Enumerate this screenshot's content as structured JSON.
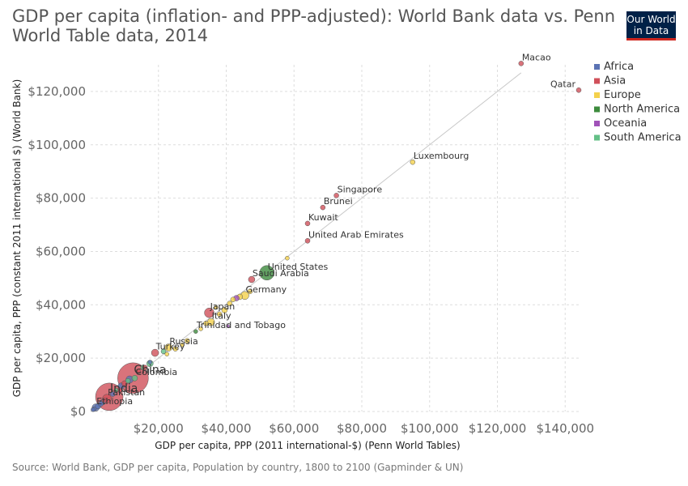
{
  "header": {
    "title": "GDP per capita (inflation- and PPP-adjusted): World Bank data vs. Penn World Table data, 2014",
    "logo_line1": "Our World",
    "logo_line2": "in Data"
  },
  "footer": {
    "source": "Source: World Bank, GDP per capita, Population by country, 1800 to 2100 (Gapminder & UN)"
  },
  "chart_data": {
    "type": "scatter",
    "title": "GDP per capita (inflation- and PPP-adjusted): World Bank data vs. Penn World Table data, 2014",
    "xlabel": "GDP per capita, PPP (2011 international-$) (Penn World Tables)",
    "ylabel": "GDP per capita, PPP (constant 2011 international $) (World Bank)",
    "xlim": [
      0,
      144000
    ],
    "ylim": [
      0,
      130000
    ],
    "x_ticks": [
      20000,
      40000,
      60000,
      80000,
      100000,
      120000,
      140000
    ],
    "x_tick_labels": [
      "$20,000",
      "$40,000",
      "$60,000",
      "$80,000",
      "$100,000",
      "$120,000",
      "$140,000"
    ],
    "y_ticks": [
      0,
      20000,
      40000,
      60000,
      80000,
      100000,
      120000
    ],
    "y_tick_labels": [
      "$0",
      "$20,000",
      "$40,000",
      "$60,000",
      "$80,000",
      "$100,000",
      "$120,000"
    ],
    "grid": true,
    "legend_position": "right",
    "reference_line": [
      [
        0,
        0
      ],
      [
        127000,
        127000
      ]
    ],
    "colors": {
      "Africa": "#5b73b4",
      "Asia": "#d0505a",
      "Europe": "#f4d14c",
      "North America": "#3d8b3d",
      "Oceania": "#a052b8",
      "South America": "#64c087"
    },
    "legend": [
      "Africa",
      "Asia",
      "Europe",
      "North America",
      "Oceania",
      "South America"
    ],
    "points": [
      {
        "name": "Macao",
        "region": "Asia",
        "x": 127000,
        "y": 130500,
        "size": 3,
        "label": "Macao"
      },
      {
        "name": "Qatar",
        "region": "Asia",
        "x": 144000,
        "y": 120500,
        "size": 3,
        "label": "Qatar"
      },
      {
        "name": "Luxembourg",
        "region": "Europe",
        "x": 95000,
        "y": 93500,
        "size": 3,
        "label": "Luxembourg"
      },
      {
        "name": "Singapore",
        "region": "Asia",
        "x": 72500,
        "y": 81000,
        "size": 3,
        "label": "Singapore"
      },
      {
        "name": "Brunei",
        "region": "Asia",
        "x": 68500,
        "y": 76500,
        "size": 3,
        "label": "Brunei"
      },
      {
        "name": "Kuwait",
        "region": "Asia",
        "x": 64000,
        "y": 70500,
        "size": 3,
        "label": "Kuwait"
      },
      {
        "name": "United Arab Emirates",
        "region": "Asia",
        "x": 64000,
        "y": 64000,
        "size": 3,
        "label": "United Arab Emirates"
      },
      {
        "name": "United States",
        "region": "North America",
        "x": 52000,
        "y": 52000,
        "size": 9,
        "label": "United States"
      },
      {
        "name": "Saudi Arabia",
        "region": "Asia",
        "x": 47500,
        "y": 49500,
        "size": 4,
        "label": "Saudi Arabia"
      },
      {
        "name": "Germany",
        "region": "Europe",
        "x": 45500,
        "y": 43500,
        "size": 5,
        "label": "Germany"
      },
      {
        "name": "Japan",
        "region": "Asia",
        "x": 35000,
        "y": 37000,
        "size": 6,
        "label": "Japan"
      },
      {
        "name": "Italy",
        "region": "Europe",
        "x": 35500,
        "y": 33500,
        "size": 4.5,
        "label": "Italy"
      },
      {
        "name": "Trinidad and Tobago",
        "region": "North America",
        "x": 31000,
        "y": 30000,
        "size": 2.5,
        "label": "Trinidad and Tobago"
      },
      {
        "name": "Russia",
        "region": "Europe",
        "x": 23000,
        "y": 24000,
        "size": 4.5,
        "label": "Russia"
      },
      {
        "name": "Turkey",
        "region": "Asia",
        "x": 19000,
        "y": 22000,
        "size": 4.5,
        "label": "Turkey"
      },
      {
        "name": "China",
        "region": "Asia",
        "x": 12500,
        "y": 12500,
        "size": 19,
        "label": "China"
      },
      {
        "name": "Colombia",
        "region": "South America",
        "x": 13000,
        "y": 12500,
        "size": 3.5,
        "label": "Colombia"
      },
      {
        "name": "India",
        "region": "Asia",
        "x": 5500,
        "y": 5500,
        "size": 17,
        "label": "India"
      },
      {
        "name": "Pakistan",
        "region": "Asia",
        "x": 4800,
        "y": 4800,
        "size": 5.5,
        "label": "Pakistan"
      },
      {
        "name": "Ethiopia",
        "region": "Africa",
        "x": 1500,
        "y": 1500,
        "size": 4.5,
        "label": "Ethiopia"
      },
      {
        "region": "Europe",
        "x": 58000,
        "y": 57500,
        "size": 2.5
      },
      {
        "region": "Europe",
        "x": 47000,
        "y": 45000,
        "size": 3
      },
      {
        "region": "Europe",
        "x": 44000,
        "y": 43000,
        "size": 3.5
      },
      {
        "region": "Europe",
        "x": 42000,
        "y": 42000,
        "size": 3
      },
      {
        "region": "Oceania",
        "x": 43000,
        "y": 42500,
        "size": 3.5
      },
      {
        "region": "Europe",
        "x": 41000,
        "y": 40500,
        "size": 3
      },
      {
        "region": "Europe",
        "x": 39500,
        "y": 38000,
        "size": 3.5
      },
      {
        "region": "Europe",
        "x": 38000,
        "y": 36500,
        "size": 3
      },
      {
        "region": "Europe",
        "x": 37000,
        "y": 39000,
        "size": 2.5
      },
      {
        "region": "Europe",
        "x": 34000,
        "y": 33000,
        "size": 3
      },
      {
        "region": "Europe",
        "x": 32500,
        "y": 31000,
        "size": 2.5
      },
      {
        "region": "Europe",
        "x": 28500,
        "y": 26500,
        "size": 3
      },
      {
        "region": "Europe",
        "x": 27000,
        "y": 25000,
        "size": 2.5
      },
      {
        "region": "Europe",
        "x": 25000,
        "y": 23500,
        "size": 3
      },
      {
        "region": "Europe",
        "x": 22500,
        "y": 21500,
        "size": 2.5
      },
      {
        "region": "Oceania",
        "x": 40500,
        "y": 32000,
        "size": 2
      },
      {
        "region": "South America",
        "x": 21500,
        "y": 22500,
        "size": 3
      },
      {
        "region": "South America",
        "x": 17500,
        "y": 18000,
        "size": 4
      },
      {
        "region": "South America",
        "x": 15500,
        "y": 16500,
        "size": 3
      },
      {
        "region": "Africa",
        "x": 17500,
        "y": 18500,
        "size": 2.5
      },
      {
        "region": "Asia",
        "x": 16000,
        "y": 16500,
        "size": 3
      },
      {
        "region": "Asia",
        "x": 14000,
        "y": 15000,
        "size": 3
      },
      {
        "region": "South America",
        "x": 11000,
        "y": 11500,
        "size": 3
      },
      {
        "region": "Africa",
        "x": 11500,
        "y": 12000,
        "size": 4.5
      },
      {
        "region": "Asia",
        "x": 10000,
        "y": 10500,
        "size": 3.5
      },
      {
        "region": "Africa",
        "x": 9000,
        "y": 9500,
        "size": 4
      },
      {
        "region": "Asia",
        "x": 8500,
        "y": 8000,
        "size": 3
      },
      {
        "region": "South America",
        "x": 7500,
        "y": 8000,
        "size": 2.5
      },
      {
        "region": "Africa",
        "x": 6500,
        "y": 6500,
        "size": 3
      },
      {
        "region": "Asia",
        "x": 4000,
        "y": 4200,
        "size": 3
      },
      {
        "region": "Africa",
        "x": 3500,
        "y": 3500,
        "size": 3.5
      },
      {
        "region": "Africa",
        "x": 3000,
        "y": 2800,
        "size": 3
      },
      {
        "region": "Africa",
        "x": 2200,
        "y": 2000,
        "size": 3.5
      },
      {
        "region": "Africa",
        "x": 1000,
        "y": 900,
        "size": 3
      },
      {
        "region": "Africa",
        "x": 700,
        "y": 700,
        "size": 2.5
      }
    ]
  }
}
